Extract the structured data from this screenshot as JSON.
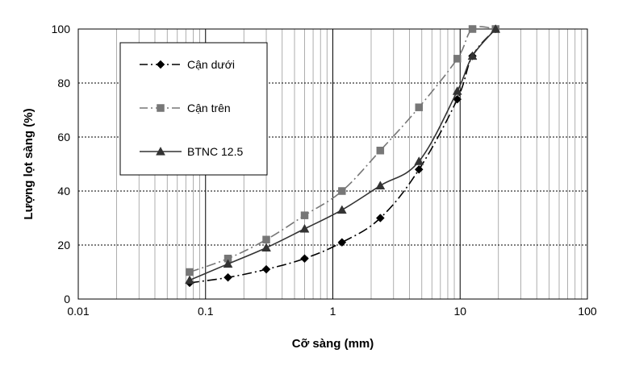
{
  "chart_data": {
    "type": "line",
    "xscale": "log",
    "xlabel": "Cỡ sàng (mm)",
    "ylabel": "Lượng lọt sàng (%)",
    "xlim": [
      0.01,
      100
    ],
    "ylim": [
      0,
      100
    ],
    "x_ticks": [
      0.01,
      0.1,
      1,
      10,
      100
    ],
    "x_tick_labels": [
      "0.01",
      "0.1",
      "1",
      "10",
      "100"
    ],
    "y_ticks": [
      0,
      20,
      40,
      60,
      80,
      100
    ],
    "y_tick_labels": [
      "0",
      "20",
      "40",
      "60",
      "80",
      "100"
    ],
    "grid": true,
    "legend_position": "top-left",
    "series": [
      {
        "name": "Cận dưới",
        "marker": "diamond",
        "line_style": "dash-dot",
        "color": "#000000",
        "x": [
          0.075,
          0.15,
          0.3,
          0.6,
          1.18,
          2.36,
          4.75,
          9.5,
          12.5,
          19
        ],
        "y": [
          6,
          8,
          11,
          15,
          21,
          30,
          48,
          74,
          90,
          100
        ]
      },
      {
        "name": "Cận trên",
        "marker": "square",
        "line_style": "dash-dot",
        "color": "#777777",
        "x": [
          0.075,
          0.15,
          0.3,
          0.6,
          1.18,
          2.36,
          4.75,
          9.5,
          12.5,
          19
        ],
        "y": [
          10,
          15,
          22,
          31,
          40,
          55,
          71,
          89,
          100,
          100
        ]
      },
      {
        "name": "BTNC 12.5",
        "marker": "triangle",
        "line_style": "solid",
        "color": "#333333",
        "x": [
          0.075,
          0.15,
          0.3,
          0.6,
          1.18,
          2.36,
          4.75,
          9.5,
          12.5,
          19
        ],
        "y": [
          7,
          13,
          19,
          26,
          33,
          42,
          51,
          77,
          90,
          100
        ]
      }
    ]
  }
}
